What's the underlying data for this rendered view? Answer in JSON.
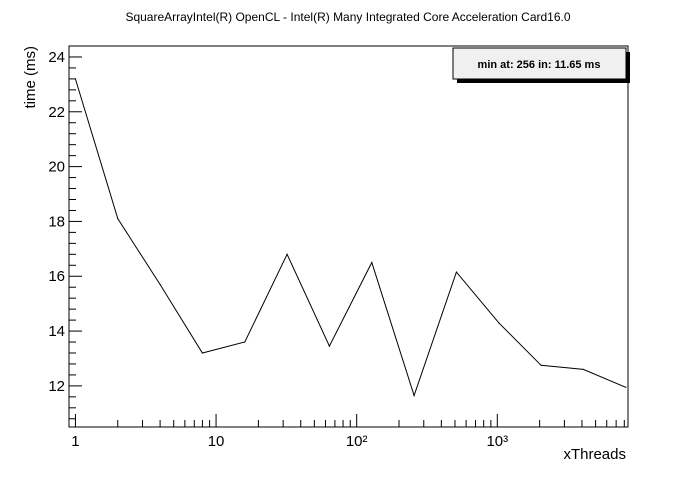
{
  "chart_data": {
    "type": "line",
    "title": "SquareArrayIntel(R) OpenCL - Intel(R) Many Integrated Core Acceleration Card16.0",
    "xlabel": "xThreads",
    "ylabel": "time (ms)",
    "x_scale": "log",
    "xlim": [
      0.9,
      8500
    ],
    "ylim": [
      10.5,
      24.4
    ],
    "x_tick_labels": [
      "1",
      "10",
      "10²",
      "10³"
    ],
    "x_tick_values": [
      1,
      10,
      100,
      1000
    ],
    "y_ticks": [
      12,
      14,
      16,
      18,
      20,
      22,
      24
    ],
    "grid": false,
    "legend": "top-right",
    "annotation": "min at: 256 in: 11.65 ms",
    "series": [
      {
        "x": [
          1,
          2,
          4,
          8,
          16,
          32,
          64,
          128,
          256,
          512,
          1024,
          2048,
          4096,
          8192
        ],
        "y": [
          23.2,
          18.1,
          15.7,
          13.2,
          13.6,
          16.8,
          13.45,
          16.5,
          11.65,
          16.15,
          14.3,
          12.75,
          12.6,
          11.95
        ]
      }
    ],
    "colors": {
      "line": "#000000",
      "legend_fill": "#f0f0f0",
      "background": "#ffffff"
    }
  }
}
